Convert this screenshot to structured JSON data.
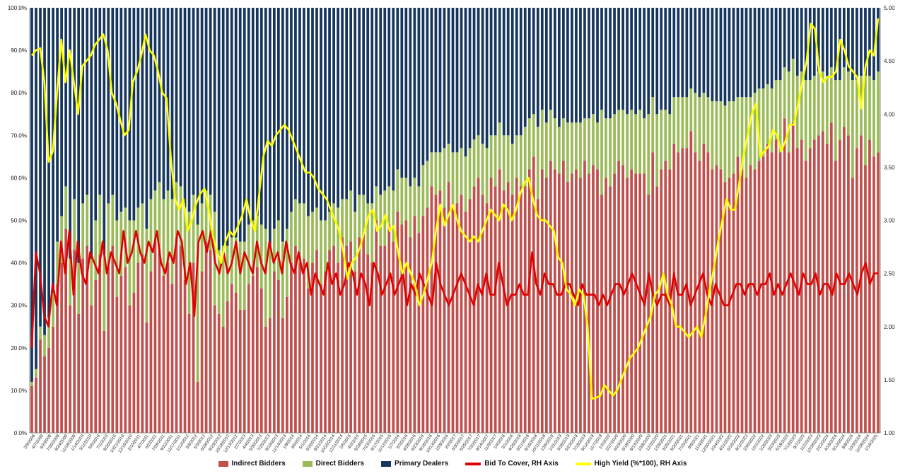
{
  "chart_data": {
    "type": "bar",
    "stacked": true,
    "grid": false,
    "legend_position": "bottom",
    "y_left": {
      "ylim": [
        0,
        100
      ],
      "tick_labels": [
        "0.0%",
        "10.0%",
        "20.0%",
        "30.0%",
        "40.0%",
        "50.0%",
        "60.0%",
        "70.0%",
        "80.0%",
        "90.0%",
        "100.0%"
      ]
    },
    "y_right": {
      "ylim": [
        1.0,
        5.0
      ],
      "tick_labels": [
        "1.00",
        "1.50",
        "2.00",
        "2.50",
        "3.00",
        "3.50",
        "4.00",
        "4.50",
        "5.00"
      ]
    },
    "x_tick_labels": [
      "2/9/2009",
      "4/7/2009",
      "6/2/2009",
      "7/30/2009",
      "9/24/2009",
      "11/18/2009",
      "1/14/2010",
      "3/11/2010",
      "5/6/2010",
      "7/1/2010",
      "8/26/2010",
      "10/21/2010",
      "12/16/2010",
      "2/10/2011",
      "4/7/2011",
      "6/2/2011",
      "7/28/2011",
      "9/22/2011",
      "11/17/2011",
      "1/12/2012",
      "3/8/2012",
      "5/3/2012",
      "6/28/2012",
      "8/23/2012",
      "10/18/2012",
      "12/13/2012",
      "2/7/2013",
      "4/4/2013",
      "5/30/2013",
      "7/25/2013",
      "9/19/2013",
      "11/14/2013",
      "1/9/2014",
      "3/6/2014",
      "5/1/2014",
      "6/26/2014",
      "8/21/2014",
      "10/16/2014",
      "12/11/2014",
      "2/5/2015",
      "4/2/2015",
      "5/28/2015",
      "7/23/2015",
      "9/17/2015",
      "11/12/2015",
      "1/7/2016",
      "3/3/2016",
      "4/28/2016",
      "6/23/2016",
      "8/18/2016",
      "10/13/2016",
      "12/8/2016",
      "2/2/2017",
      "3/30/2017",
      "5/25/2017",
      "7/20/2017",
      "9/14/2017",
      "11/9/2017",
      "1/4/2018",
      "3/1/2018",
      "4/26/2018",
      "6/21/2018",
      "8/16/2018",
      "10/11/2018",
      "12/6/2018",
      "1/31/2019",
      "3/28/2019",
      "5/23/2019",
      "7/18/2019",
      "9/12/2019",
      "11/7/2019",
      "1/2/2020",
      "2/27/2020",
      "4/23/2020",
      "6/18/2020",
      "8/13/2020",
      "10/8/2020",
      "12/3/2020",
      "1/28/2021",
      "3/25/2021",
      "5/20/2021",
      "7/15/2021",
      "9/9/2021",
      "11/4/2021",
      "12/30/2021",
      "2/24/2022",
      "4/21/2022",
      "6/16/2022",
      "8/11/2022",
      "10/6/2022",
      "12/1/2022",
      "1/26/2023",
      "3/23/2023",
      "5/18/2023",
      "7/13/2023",
      "9/7/2023",
      "11/2/2023",
      "12/28/2023",
      "2/22/2024",
      "4/18/2024",
      "6/13/2024",
      "8/8/2024",
      "10/3/2024",
      "11/28/2024",
      "1/16/2025"
    ],
    "categories_count": 200,
    "series": [
      {
        "name": "Indirect Bidders",
        "color": "#c0504d",
        "axis": "left",
        "kind": "bar",
        "values": [
          11,
          13,
          22,
          18,
          20,
          25,
          35,
          40,
          48,
          30,
          43,
          28,
          41,
          44,
          30,
          36,
          42,
          24,
          39,
          44,
          32,
          37,
          39,
          30,
          33,
          40,
          42,
          26,
          38,
          45,
          43,
          37,
          40,
          35,
          46,
          44,
          36,
          28,
          40,
          12,
          38,
          45,
          43,
          30,
          28,
          25,
          31,
          35,
          33,
          29,
          29,
          35,
          37,
          39,
          34,
          25,
          27,
          38,
          36,
          27,
          32,
          40,
          44,
          40,
          41,
          34,
          40,
          43,
          35,
          38,
          43,
          44,
          40,
          46,
          44,
          45,
          38,
          46,
          47,
          42,
          40,
          50,
          44,
          44,
          49,
          45,
          52,
          49,
          50,
          46,
          51,
          47,
          51,
          53,
          58,
          56,
          57,
          53,
          59,
          54,
          54,
          56,
          52,
          55,
          58,
          60,
          56,
          54,
          60,
          58,
          62,
          57,
          59,
          56,
          60,
          58,
          58,
          62,
          65,
          55,
          62,
          60,
          64,
          62,
          61,
          64,
          59,
          61,
          62,
          60,
          64,
          61,
          63,
          62,
          56,
          60,
          58,
          61,
          64,
          63,
          60,
          62,
          61,
          61,
          61,
          56,
          66,
          58,
          62,
          64,
          62,
          68,
          66,
          67,
          67,
          71,
          66,
          64,
          68,
          66,
          62,
          63,
          62,
          59,
          60,
          61,
          65,
          62,
          60,
          63,
          62,
          64,
          65,
          68,
          66,
          69,
          66,
          74,
          66,
          73,
          67,
          69,
          64,
          67,
          69,
          70,
          71,
          68,
          73,
          64,
          69,
          72,
          70,
          60,
          67,
          70,
          63,
          69,
          65,
          66
        ]
      },
      {
        "name": "Direct Bidders",
        "color": "#9bbb59",
        "axis": "left",
        "kind": "bar",
        "values": [
          1,
          2,
          3,
          5,
          7,
          8,
          10,
          11,
          10,
          11,
          12,
          12,
          13,
          12,
          11,
          14,
          14,
          18,
          15,
          12,
          18,
          15,
          14,
          20,
          17,
          13,
          12,
          22,
          17,
          12,
          16,
          18,
          17,
          20,
          13,
          14,
          17,
          24,
          16,
          37,
          16,
          12,
          13,
          22,
          15,
          19,
          13,
          11,
          13,
          16,
          16,
          14,
          13,
          12,
          15,
          23,
          17,
          10,
          14,
          18,
          16,
          12,
          11,
          14,
          13,
          17,
          12,
          10,
          15,
          12,
          9,
          10,
          13,
          9,
          11,
          12,
          14,
          10,
          9,
          12,
          14,
          8,
          12,
          13,
          9,
          12,
          10,
          11,
          10,
          12,
          9,
          11,
          12,
          11,
          8,
          10,
          9,
          14,
          9,
          12,
          12,
          11,
          13,
          12,
          11,
          10,
          12,
          13,
          10,
          12,
          11,
          13,
          11,
          12,
          10,
          12,
          14,
          12,
          10,
          17,
          14,
          13,
          12,
          12,
          11,
          10,
          14,
          12,
          11,
          13,
          10,
          13,
          12,
          11,
          20,
          14,
          16,
          14,
          12,
          13,
          15,
          14,
          14,
          15,
          13,
          19,
          13,
          17,
          14,
          12,
          13,
          11,
          13,
          12,
          12,
          10,
          14,
          15,
          12,
          13,
          16,
          15,
          16,
          18,
          18,
          17,
          14,
          17,
          19,
          16,
          18,
          17,
          16,
          14,
          15,
          14,
          17,
          12,
          19,
          15,
          17,
          16,
          19,
          16,
          15,
          15,
          14,
          16,
          13,
          19,
          14,
          14,
          15,
          23,
          16,
          14,
          21,
          15,
          18,
          19
        ]
      }
    ],
    "remainder_series": {
      "name": "Primary Dealers",
      "color": "#17365d",
      "axis": "left",
      "kind": "bar",
      "note_total": 100
    },
    "lines": [
      {
        "name": "Bid To Cover, RH Axis",
        "color": "#e00000",
        "axis": "right",
        "values": [
          1.8,
          2.7,
          2.5,
          2.1,
          2.0,
          2.4,
          2.2,
          2.8,
          2.5,
          2.9,
          2.3,
          2.8,
          2.5,
          2.4,
          2.7,
          2.6,
          2.5,
          2.8,
          2.5,
          2.7,
          2.6,
          2.5,
          2.9,
          2.6,
          2.7,
          2.9,
          2.7,
          2.6,
          2.8,
          2.7,
          2.9,
          2.6,
          2.5,
          2.7,
          2.6,
          2.9,
          2.8,
          2.4,
          2.6,
          2.1,
          2.8,
          2.9,
          2.7,
          2.9,
          2.6,
          2.5,
          2.7,
          2.5,
          2.6,
          2.8,
          2.5,
          2.7,
          2.6,
          2.5,
          2.8,
          2.6,
          2.5,
          2.8,
          2.6,
          2.7,
          2.5,
          2.8,
          2.6,
          2.5,
          2.7,
          2.5,
          2.6,
          2.3,
          2.5,
          2.4,
          2.3,
          2.6,
          2.4,
          2.5,
          2.3,
          2.4,
          2.6,
          2.5,
          2.3,
          2.5,
          2.4,
          2.2,
          2.6,
          2.5,
          2.3,
          2.4,
          2.5,
          2.3,
          2.4,
          2.5,
          2.2,
          2.4,
          2.3,
          2.5,
          2.4,
          2.3,
          2.2,
          2.6,
          2.4,
          2.3,
          2.2,
          2.3,
          2.4,
          2.5,
          2.4,
          2.3,
          2.2,
          2.4,
          2.3,
          2.5,
          2.3,
          2.3,
          2.6,
          2.4,
          2.2,
          2.3,
          2.3,
          2.4,
          2.3,
          2.3,
          2.7,
          2.4,
          2.3,
          2.5,
          2.4,
          2.4,
          2.3,
          2.3,
          2.4,
          2.4,
          2.3,
          2.2,
          2.4,
          2.3,
          2.3,
          2.3,
          2.2,
          2.3,
          2.2,
          2.3,
          2.4,
          2.4,
          2.3,
          2.4,
          2.5,
          2.4,
          2.3,
          2.2,
          2.5,
          2.3,
          2.2,
          2.3,
          2.3,
          2.2,
          2.5,
          2.3,
          2.3,
          2.4,
          2.2,
          2.3,
          2.4,
          2.5,
          2.3,
          2.2,
          2.4,
          2.3,
          2.2,
          2.2,
          2.3,
          2.4,
          2.4,
          2.3,
          2.4,
          2.4,
          2.3,
          2.4,
          2.4,
          2.5,
          2.3,
          2.4,
          2.3,
          2.4,
          2.5,
          2.4,
          2.3,
          2.5,
          2.4,
          2.4,
          2.5,
          2.3,
          2.4,
          2.4,
          2.3,
          2.5,
          2.4,
          2.4,
          2.5,
          2.4,
          2.3,
          2.5,
          2.6,
          2.4,
          2.5,
          2.5
        ]
      },
      {
        "name": "High Yield (%*100), RH Axis",
        "color": "#ffff00",
        "axis": "right",
        "values": [
          4.55,
          4.6,
          4.62,
          4.3,
          3.55,
          3.65,
          4.2,
          4.7,
          4.3,
          4.6,
          4.3,
          4.0,
          4.45,
          4.5,
          4.55,
          4.65,
          4.7,
          4.75,
          4.6,
          4.2,
          4.1,
          3.95,
          3.8,
          3.85,
          4.3,
          4.4,
          4.55,
          4.75,
          4.6,
          4.55,
          4.4,
          4.2,
          4.15,
          3.6,
          3.2,
          3.1,
          3.2,
          2.9,
          3.0,
          3.15,
          3.25,
          3.3,
          3.1,
          2.85,
          2.7,
          2.6,
          2.8,
          2.9,
          2.85,
          2.95,
          3.05,
          3.2,
          3.0,
          2.9,
          3.25,
          3.6,
          3.75,
          3.7,
          3.8,
          3.85,
          3.9,
          3.85,
          3.75,
          3.65,
          3.55,
          3.45,
          3.45,
          3.4,
          3.3,
          3.25,
          3.2,
          3.1,
          3.0,
          2.9,
          2.7,
          2.45,
          2.6,
          2.65,
          2.75,
          2.9,
          3.05,
          3.1,
          2.9,
          2.95,
          3.05,
          2.9,
          2.95,
          2.7,
          2.5,
          2.6,
          2.5,
          2.4,
          2.2,
          2.3,
          2.45,
          2.6,
          2.9,
          3.15,
          2.95,
          3.05,
          3.15,
          3.0,
          2.9,
          2.85,
          2.8,
          2.85,
          2.8,
          2.9,
          3.0,
          3.1,
          3.05,
          3.0,
          3.15,
          3.1,
          3.0,
          3.1,
          3.25,
          3.35,
          3.4,
          3.2,
          3.05,
          3.0,
          3.0,
          2.95,
          2.9,
          2.65,
          2.6,
          2.35,
          2.3,
          2.2,
          2.35,
          2.3,
          2.0,
          1.32,
          1.33,
          1.35,
          1.45,
          1.4,
          1.35,
          1.4,
          1.5,
          1.6,
          1.7,
          1.75,
          1.8,
          1.9,
          2.0,
          2.1,
          2.3,
          2.35,
          2.5,
          2.3,
          2.2,
          2.0,
          2.0,
          1.95,
          1.9,
          1.95,
          2.0,
          1.9,
          2.1,
          2.35,
          2.55,
          2.8,
          3.0,
          3.2,
          3.1,
          3.1,
          3.35,
          3.6,
          3.8,
          4.0,
          4.1,
          3.6,
          3.65,
          3.7,
          3.85,
          3.8,
          3.65,
          3.75,
          3.9,
          3.9,
          4.1,
          4.3,
          4.5,
          4.85,
          4.8,
          4.4,
          4.3,
          4.35,
          4.35,
          4.4,
          4.7,
          4.6,
          4.45,
          4.4,
          4.35,
          4.05,
          4.45,
          4.6,
          4.55,
          4.9
        ]
      }
    ]
  }
}
